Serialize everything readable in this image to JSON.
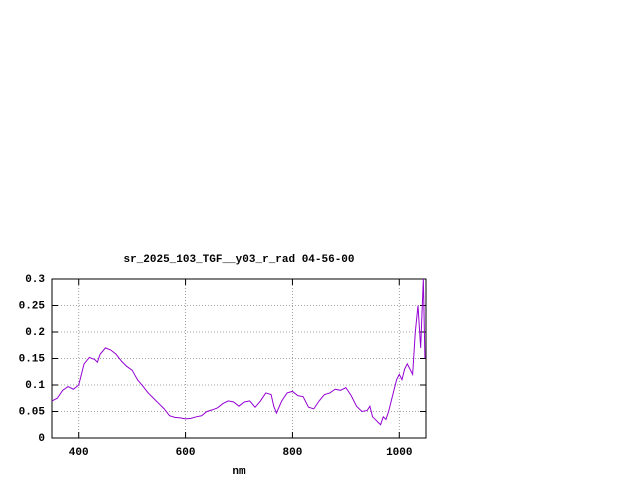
{
  "chart_data": {
    "type": "line",
    "title": "sr_2025_103_TGF__y03_r_rad 04-56-00",
    "x_label": "nm",
    "xlim": [
      350,
      1050
    ],
    "xticks": [
      400,
      600,
      800,
      1000
    ],
    "ylim": [
      0,
      0.3
    ],
    "yticks": [
      0,
      0.05,
      0.1,
      0.15,
      0.2,
      0.25,
      0.3
    ],
    "grid": true,
    "x": [
      350,
      360,
      370,
      380,
      390,
      400,
      410,
      420,
      430,
      435,
      440,
      450,
      460,
      470,
      480,
      490,
      500,
      510,
      520,
      530,
      540,
      550,
      560,
      570,
      580,
      590,
      600,
      610,
      620,
      630,
      640,
      650,
      660,
      670,
      680,
      690,
      700,
      710,
      720,
      730,
      740,
      750,
      760,
      765,
      770,
      780,
      790,
      800,
      810,
      820,
      830,
      840,
      850,
      860,
      870,
      880,
      890,
      900,
      910,
      920,
      930,
      940,
      945,
      950,
      955,
      960,
      965,
      970,
      975,
      980,
      985,
      990,
      995,
      1000,
      1005,
      1010,
      1015,
      1020,
      1025,
      1030,
      1035,
      1040,
      1045,
      1048
    ],
    "series": [
      {
        "name": "sr_2025_103_TGF__y03_r_rad",
        "color": "#9400d3",
        "values": [
          0.07,
          0.075,
          0.09,
          0.097,
          0.092,
          0.1,
          0.14,
          0.152,
          0.148,
          0.143,
          0.158,
          0.17,
          0.166,
          0.158,
          0.145,
          0.135,
          0.128,
          0.11,
          0.098,
          0.085,
          0.075,
          0.065,
          0.055,
          0.042,
          0.039,
          0.038,
          0.036,
          0.037,
          0.04,
          0.042,
          0.05,
          0.053,
          0.057,
          0.065,
          0.07,
          0.068,
          0.06,
          0.068,
          0.07,
          0.058,
          0.07,
          0.085,
          0.082,
          0.06,
          0.047,
          0.07,
          0.085,
          0.088,
          0.08,
          0.078,
          0.058,
          0.055,
          0.07,
          0.082,
          0.085,
          0.092,
          0.09,
          0.095,
          0.08,
          0.06,
          0.05,
          0.052,
          0.06,
          0.04,
          0.035,
          0.03,
          0.025,
          0.04,
          0.035,
          0.05,
          0.07,
          0.09,
          0.11,
          0.12,
          0.11,
          0.13,
          0.14,
          0.13,
          0.12,
          0.2,
          0.25,
          0.17,
          0.3,
          0.15
        ]
      }
    ]
  }
}
